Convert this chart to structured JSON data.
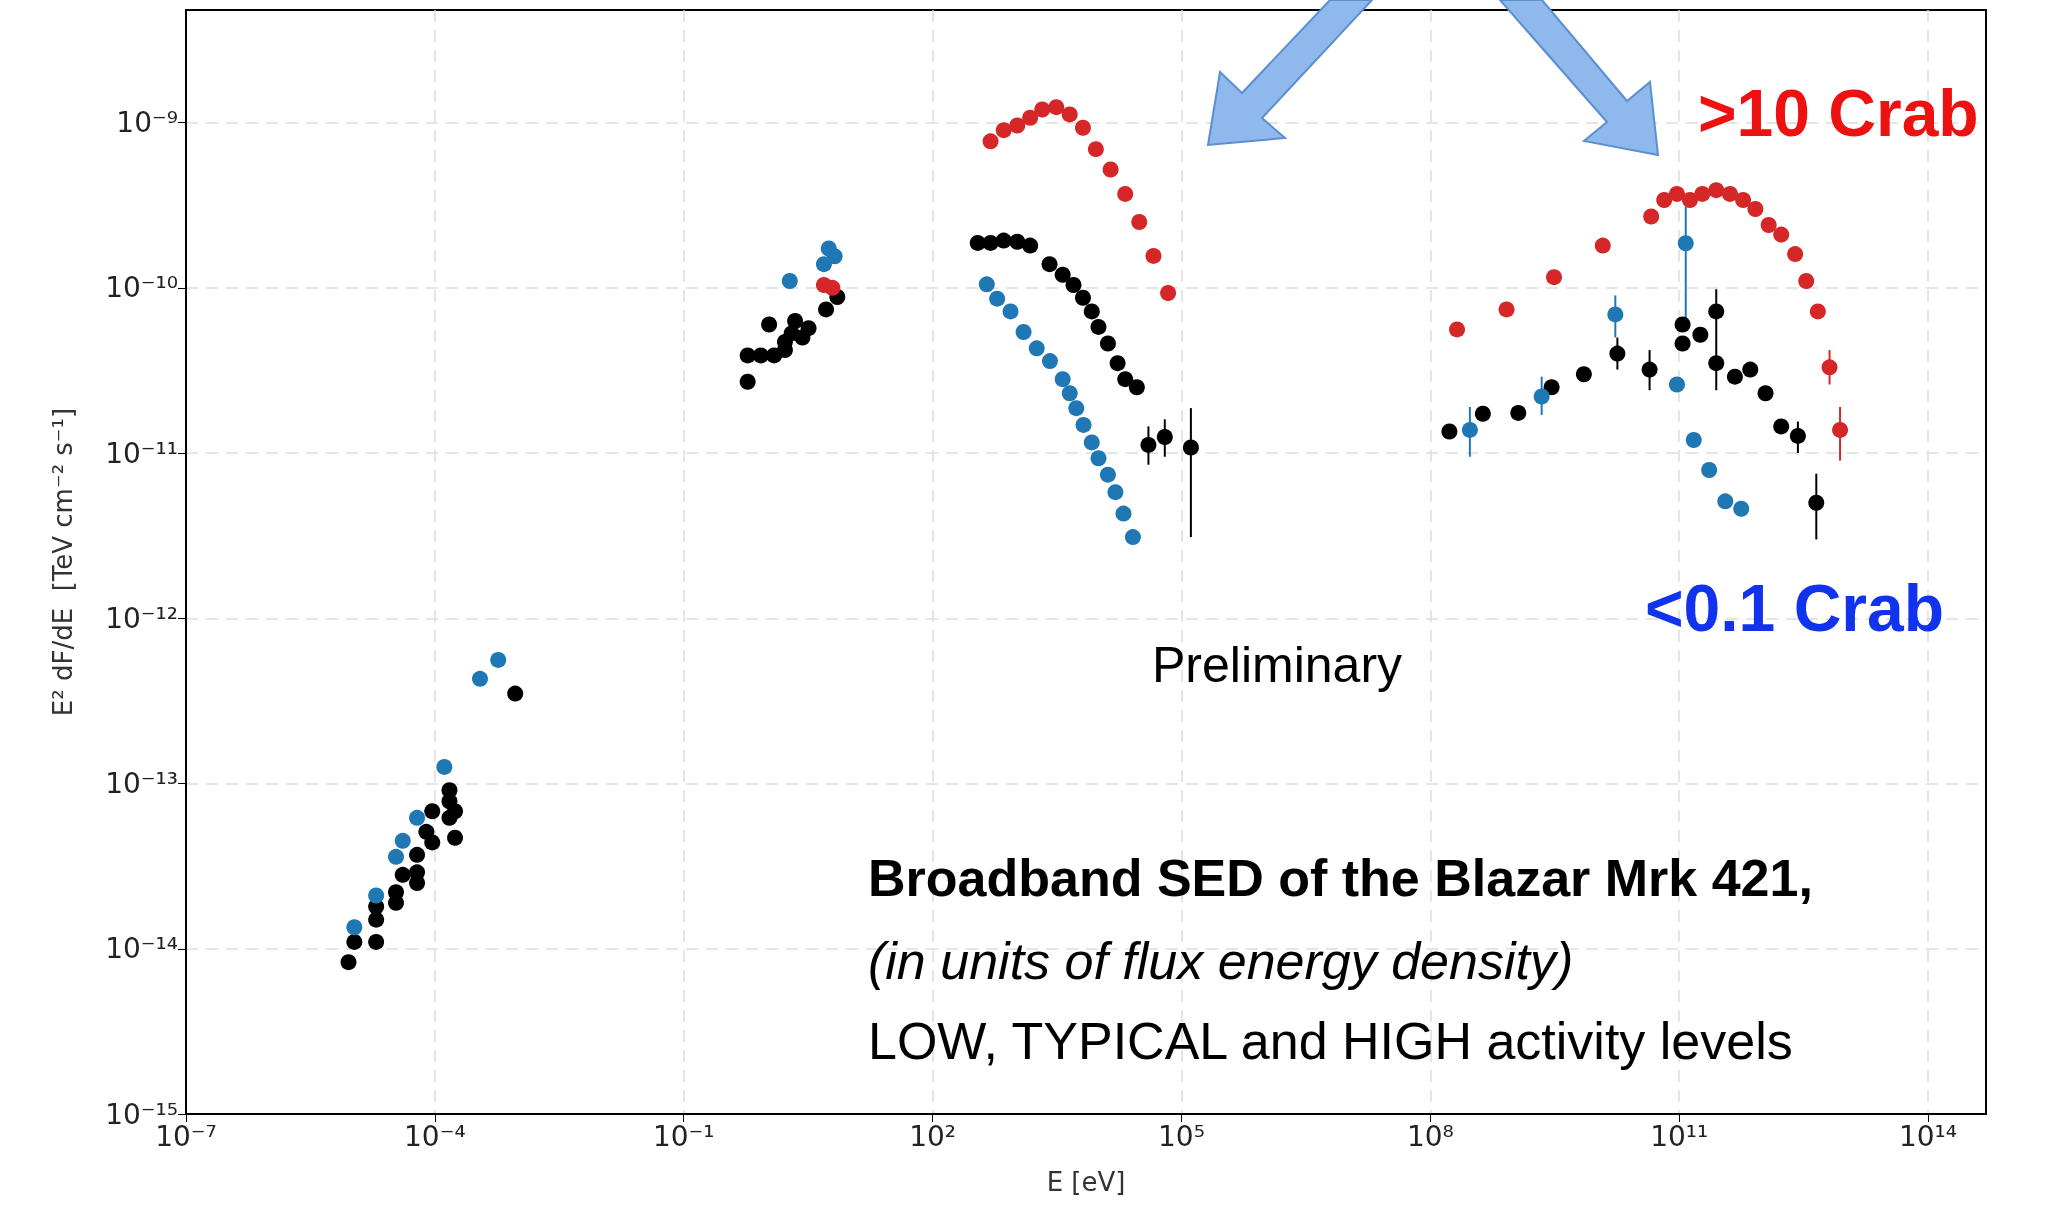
{
  "chart_data": {
    "type": "scatter",
    "xlabel": "E [eV]",
    "ylabel": "E² dF/dE  [TeV cm⁻² s⁻¹]",
    "log": "xy",
    "grid": true,
    "marker": "circle",
    "xlim": [
      1e-07,
      500000000000000.0
    ],
    "ylim": [
      1e-15,
      4.8e-09
    ],
    "xticks": [
      {
        "value": 1e-07,
        "label": "10⁻⁷"
      },
      {
        "value": 0.0001,
        "label": "10⁻⁴"
      },
      {
        "value": 0.1,
        "label": "10⁻¹"
      },
      {
        "value": 100,
        "label": "10²"
      },
      {
        "value": 100000.0,
        "label": "10⁵"
      },
      {
        "value": 100000000.0,
        "label": "10⁸"
      },
      {
        "value": 100000000000.0,
        "label": "10¹¹"
      },
      {
        "value": 100000000000000.0,
        "label": "10¹⁴"
      }
    ],
    "yticks": [
      {
        "value": 1e-15,
        "label": "10⁻¹⁵"
      },
      {
        "value": 1e-14,
        "label": "10⁻¹⁴"
      },
      {
        "value": 1e-13,
        "label": "10⁻¹³"
      },
      {
        "value": 1e-12,
        "label": "10⁻¹²"
      },
      {
        "value": 1e-11,
        "label": "10⁻¹¹"
      },
      {
        "value": 1e-10,
        "label": "10⁻¹⁰"
      },
      {
        "value": 1e-09,
        "label": "10⁻⁹"
      }
    ],
    "annotations": [
      ">10 Crab",
      "<0.1 Crab",
      "Preliminary",
      "Broadband SED of the Blazar Mrk 421,",
      "(in units of flux energy density)",
      "LOW, TYPICAL and HIGH activity levels"
    ],
    "series": [
      {
        "color": "#000000",
        "x": [
          9.1e-06,
          1.07e-05,
          1.96e-05,
          1.96e-05,
          1.96e-05,
          3.4e-05,
          3.4e-05,
          4.1e-05,
          6.1e-05,
          6.1e-05,
          6.1e-05,
          7.9e-05,
          9.3e-05,
          9.3e-05,
          0.00015,
          0.00015,
          0.000175,
          0.000175,
          0.00015,
          0.00093,
          0.59,
          0.59,
          0.85,
          1.07,
          1.23,
          1.66,
          1.66,
          2.0,
          2.2,
          2.7,
          3.2,
          5.2,
          7.1,
          350,
          500,
          720,
          1050,
          1500,
          2570,
          3700,
          5000,
          6500,
          8300,
          10000.0,
          13000.0,
          17000.0,
          21000.0,
          29000.0,
          40000.0,
          63000.0,
          130000.0,
          170000000.0,
          430000000.0,
          1150000000.0,
          2900000000.0,
          7100000000.0,
          18000000000.0,
          44000000000.0,
          110000000000.0,
          110000000000.0,
          180000000000.0,
          280000000000.0,
          280000000000.0,
          470000000000.0,
          720000000000.0,
          1100000000000.0,
          1700000000000.0,
          2700000000000.0,
          4500000000000.0
        ],
        "values": [
          8.3e-15,
          1.1e-14,
          1.1e-14,
          1.5e-14,
          1.8e-14,
          1.9e-14,
          2.2e-14,
          2.8e-14,
          2.9e-14,
          2.5e-14,
          3.7e-14,
          5.1e-14,
          6.8e-14,
          4.4e-14,
          7.8e-14,
          6.2e-14,
          6.8e-14,
          4.7e-14,
          9.1e-14,
          3.5e-13,
          2.7e-11,
          3.9e-11,
          3.9e-11,
          6e-11,
          3.9e-11,
          4.2e-11,
          4.7e-11,
          5.3e-11,
          6.3e-11,
          5e-11,
          5.7e-11,
          7.4e-11,
          8.8e-11,
          1.87e-10,
          1.87e-10,
          1.93e-10,
          1.9e-10,
          1.8e-10,
          1.39e-10,
          1.2e-10,
          1.04e-10,
          8.7e-11,
          7.2e-11,
          5.8e-11,
          4.6e-11,
          3.5e-11,
          2.8e-11,
          2.5e-11,
          1.12e-11,
          1.25e-11,
          1.08e-11,
          1.35e-11,
          1.73e-11,
          1.75e-11,
          2.5e-11,
          3e-11,
          4e-11,
          3.2e-11,
          6e-11,
          4.6e-11,
          5.2e-11,
          7.2e-11,
          3.5e-11,
          2.9e-11,
          3.2e-11,
          2.3e-11,
          1.45e-11,
          1.27e-11,
          5e-12
        ],
        "errors": [
          null,
          null,
          null,
          null,
          null,
          null,
          null,
          null,
          null,
          null,
          null,
          null,
          null,
          null,
          null,
          null,
          null,
          null,
          null,
          null,
          null,
          null,
          null,
          null,
          null,
          null,
          null,
          null,
          null,
          null,
          null,
          null,
          null,
          null,
          null,
          null,
          null,
          null,
          null,
          null,
          null,
          null,
          null,
          null,
          null,
          null,
          null,
          null,
          [
            8.5e-12,
            1.45e-11
          ],
          [
            9.5e-12,
            1.6e-11
          ],
          [
            3.1e-12,
            1.87e-11
          ],
          null,
          null,
          null,
          null,
          null,
          [
            3.2e-11,
            5e-11
          ],
          [
            2.4e-11,
            4.2e-11
          ],
          null,
          null,
          null,
          [
            2.4e-11,
            9.8e-11
          ],
          null,
          null,
          null,
          null,
          null,
          [
            1e-11,
            1.55e-11
          ],
          [
            3e-12,
            7.5e-12
          ]
        ]
      },
      {
        "color": "#1f77b4",
        "x": [
          1.07e-05,
          1.96e-05,
          3.4e-05,
          4.1e-05,
          6.1e-05,
          0.00013,
          0.00035,
          0.00058,
          1.9,
          4.4,
          4.9,
          5.6,
          6.6,
          450,
          600,
          870,
          1250,
          1800,
          2600,
          3700,
          4500,
          5400,
          6600,
          8300,
          10000.0,
          13000.0,
          16000.0,
          20000.0,
          26000.0,
          300000000.0,
          2200000000.0,
          17000000000.0,
          94000000000.0,
          120000000000.0,
          150000000000.0,
          230000000000.0,
          360000000000.0,
          560000000000.0
        ],
        "values": [
          1.35e-14,
          2.1e-14,
          3.6e-14,
          4.5e-14,
          6.2e-14,
          1.26e-13,
          4.3e-13,
          5.6e-13,
          1.1e-10,
          null,
          1.39e-10,
          1.73e-10,
          1.55e-10,
          1.05e-10,
          8.6e-11,
          7.2e-11,
          5.4e-11,
          4.3e-11,
          3.6e-11,
          2.8e-11,
          2.3e-11,
          1.87e-11,
          1.48e-11,
          1.16e-11,
          9.3e-12,
          7.4e-12,
          5.8e-12,
          4.3e-12,
          3.1e-12,
          1.38e-11,
          2.2e-11,
          6.9e-11,
          2.6e-11,
          1.86e-10,
          1.2e-11,
          7.9e-12,
          5.1e-12,
          4.6e-12
        ],
        "errors": [
          null,
          null,
          null,
          null,
          null,
          null,
          null,
          null,
          null,
          null,
          null,
          null,
          null,
          null,
          null,
          null,
          null,
          null,
          null,
          null,
          null,
          null,
          null,
          null,
          null,
          null,
          null,
          null,
          null,
          [
            9.5e-12,
            1.9e-11
          ],
          [
            1.7e-11,
            2.9e-11
          ],
          [
            5e-11,
            9e-11
          ],
          null,
          [
            6.5e-11,
            3.1e-10
          ],
          null,
          null,
          null,
          null
        ]
      },
      {
        "color": "#d62728",
        "x": [
          4.9,
          5.6,
          6.2,
          500,
          720,
          1050,
          1500,
          2100,
          3100,
          4500,
          6500,
          9300,
          14000.0,
          21000.0,
          31000.0,
          46000.0,
          69000.0,
          210000000.0,
          830000000.0,
          3100000000.0,
          12000000000.0,
          46000000000.0,
          66000000000.0,
          94000000000.0,
          135000000000.0,
          190000000000.0,
          280000000000.0,
          410000000000.0,
          590000000000.0,
          830000000000.0,
          1200000000000.0,
          1700000000000.0,
          2500000000000.0,
          3400000000000.0,
          4700000000000.0,
          6500000000000.0,
          8700000000000.0
        ],
        "values": [
          1.04e-10,
          null,
          1e-10,
          7.7e-10,
          9e-10,
          9.6e-10,
          1.07e-09,
          1.2e-09,
          1.24e-09,
          1.12e-09,
          9.3e-10,
          6.9e-10,
          5.2e-10,
          3.7e-10,
          2.5e-10,
          1.56e-10,
          9.3e-11,
          5.6e-11,
          7.4e-11,
          1.16e-10,
          1.8e-10,
          2.7e-10,
          3.4e-10,
          3.7e-10,
          3.4e-10,
          3.7e-10,
          3.9e-10,
          3.7e-10,
          3.4e-10,
          3e-10,
          2.4e-10,
          2.1e-10,
          1.6e-10,
          1.1e-10,
          7.2e-11,
          3.3e-11,
          1.38e-11
        ],
        "errors": [
          null,
          null,
          null,
          null,
          null,
          null,
          null,
          null,
          null,
          null,
          null,
          null,
          null,
          null,
          null,
          null,
          null,
          null,
          null,
          null,
          null,
          null,
          null,
          null,
          null,
          null,
          null,
          null,
          null,
          null,
          null,
          null,
          null,
          null,
          null,
          [
            2.6e-11,
            4.2e-11
          ],
          [
            9e-12,
            1.9e-11
          ]
        ]
      }
    ]
  }
}
